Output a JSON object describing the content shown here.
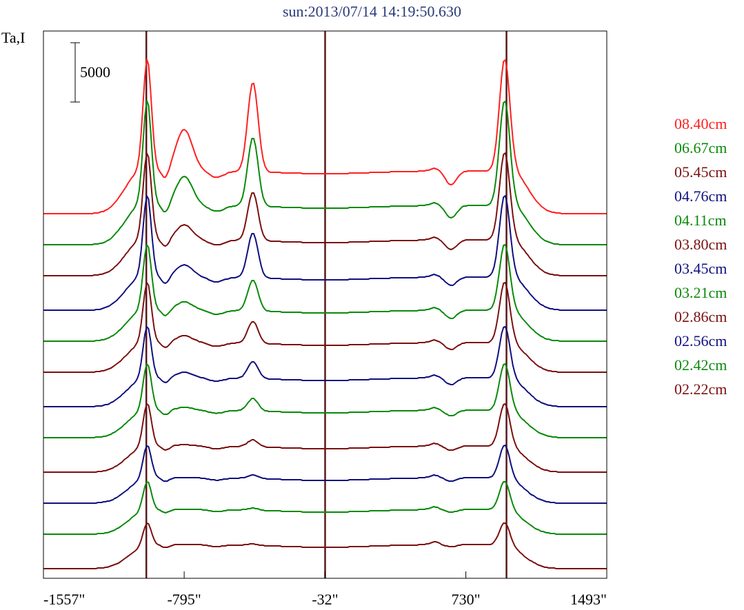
{
  "chart_data": {
    "type": "line",
    "title": "sun:2013/07/14 14:19:50.630",
    "ylabel": "Ta,I",
    "scale_bar_label": "5000",
    "xticks": [
      {
        "value": -1557,
        "label": "-1557\""
      },
      {
        "value": -795,
        "label": "-795\""
      },
      {
        "value": -32,
        "label": "-32\""
      },
      {
        "value": 730,
        "label": "730\""
      },
      {
        "value": 1493,
        "label": "1493\""
      }
    ],
    "xlim": [
      -1557,
      1493
    ],
    "vertical_markers": [
      -1000,
      -32,
      950
    ],
    "colors": {
      "red": "#ff2020",
      "green": "#0a8a0a",
      "maroon": "#7a1010",
      "navy": "#101080",
      "marker": "#5a1a1a"
    },
    "series": [
      {
        "name": "08.40cm",
        "color": "#ff2020",
        "baseline": 310,
        "limb": 222,
        "inner": 62,
        "peaks": [
          [
            -795,
            60
          ],
          [
            -423,
            130
          ]
        ],
        "right_dip": 20,
        "cold_tail": true
      },
      {
        "name": "06.67cm",
        "color": "#0a8a0a",
        "baseline": 355,
        "limb": 207,
        "inner": 57,
        "peaks": [
          [
            -795,
            42
          ],
          [
            -423,
            100
          ]
        ],
        "right_dip": 18,
        "cold_tail": false
      },
      {
        "name": "05.45cm",
        "color": "#7a1010",
        "baseline": 400,
        "limb": 177,
        "inner": 52,
        "peaks": [
          [
            -795,
            22
          ],
          [
            -423,
            70
          ]
        ],
        "right_dip": 14,
        "cold_tail": false
      },
      {
        "name": "04.76cm",
        "color": "#101080",
        "baseline": 450,
        "limb": 165,
        "inner": 48,
        "peaks": [
          [
            -795,
            18
          ],
          [
            -423,
            65
          ]
        ],
        "right_dip": 12,
        "cold_tail": false
      },
      {
        "name": "04.11cm",
        "color": "#0a8a0a",
        "baseline": 495,
        "limb": 140,
        "inner": 45,
        "peaks": [
          [
            -795,
            12
          ],
          [
            -423,
            45
          ]
        ],
        "right_dip": 12,
        "cold_tail": false
      },
      {
        "name": "03.80cm",
        "color": "#7a1010",
        "baseline": 540,
        "limb": 130,
        "inner": 43,
        "peaks": [
          [
            -795,
            10
          ],
          [
            -423,
            32
          ]
        ],
        "right_dip": 10,
        "cold_tail": false
      },
      {
        "name": "03.45cm",
        "color": "#101080",
        "baseline": 590,
        "limb": 117,
        "inner": 42,
        "peaks": [
          [
            -795,
            8
          ],
          [
            -423,
            25
          ]
        ],
        "right_dip": 10,
        "cold_tail": false
      },
      {
        "name": "03.21cm",
        "color": "#0a8a0a",
        "baseline": 635,
        "limb": 108,
        "inner": 40,
        "peaks": [
          [
            -795,
            4
          ],
          [
            -423,
            18
          ]
        ],
        "right_dip": 8,
        "cold_tail": false
      },
      {
        "name": "02.86cm",
        "color": "#7a1010",
        "baseline": 685,
        "limb": 100,
        "inner": 38,
        "peaks": [
          [
            -795,
            2
          ],
          [
            -423,
            10
          ]
        ],
        "right_dip": 6,
        "cold_tail": false
      },
      {
        "name": "02.56cm",
        "color": "#101080",
        "baseline": 730,
        "limb": 85,
        "inner": 37,
        "peaks": [
          [
            -795,
            0
          ],
          [
            -423,
            5
          ]
        ],
        "right_dip": 5,
        "cold_tail": false
      },
      {
        "name": "02.42cm",
        "color": "#0a8a0a",
        "baseline": 775,
        "limb": 78,
        "inner": 36,
        "peaks": [
          [
            -795,
            0
          ],
          [
            -423,
            3
          ]
        ],
        "right_dip": 4,
        "cold_tail": false
      },
      {
        "name": "02.22cm",
        "color": "#7a1010",
        "baseline": 825,
        "limb": 68,
        "inner": 35,
        "peaks": [
          [
            -795,
            0
          ],
          [
            -423,
            2
          ]
        ],
        "right_dip": 3,
        "cold_tail": false
      }
    ]
  }
}
